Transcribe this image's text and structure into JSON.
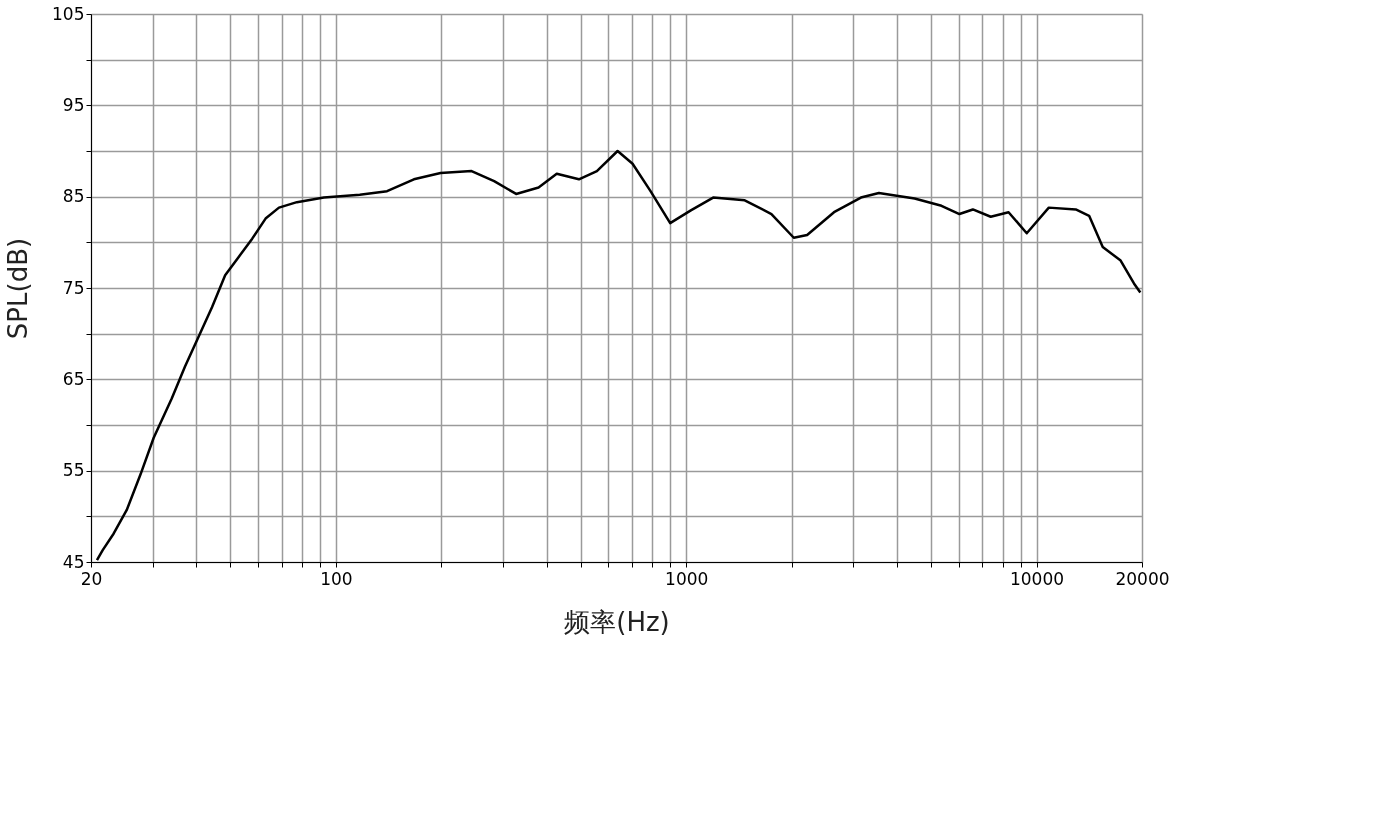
{
  "chart_data": {
    "type": "line",
    "xlabel": "频率(Hz)",
    "ylabel": "SPL(dB)",
    "log": "x",
    "grid": true,
    "marker": "none",
    "line_style": "solid",
    "xlim": [
      20,
      20000
    ],
    "ylim": [
      45,
      105
    ],
    "xticks": [
      20,
      {
        "value": 30,
        "label": null
      },
      {
        "value": 40,
        "label": null
      },
      {
        "value": 50,
        "label": null
      },
      {
        "value": 60,
        "label": null
      },
      {
        "value": 70,
        "label": null
      },
      {
        "value": 80,
        "label": null
      },
      {
        "value": 90,
        "label": null
      },
      100,
      {
        "value": 200,
        "label": null
      },
      {
        "value": 300,
        "label": null
      },
      {
        "value": 400,
        "label": null
      },
      {
        "value": 500,
        "label": null
      },
      {
        "value": 600,
        "label": null
      },
      {
        "value": 700,
        "label": null
      },
      {
        "value": 800,
        "label": null
      },
      {
        "value": 900,
        "label": null
      },
      1000,
      {
        "value": 2000,
        "label": null
      },
      {
        "value": 3000,
        "label": null
      },
      {
        "value": 4000,
        "label": null
      },
      {
        "value": 5000,
        "label": null
      },
      {
        "value": 6000,
        "label": null
      },
      {
        "value": 7000,
        "label": null
      },
      {
        "value": 8000,
        "label": null
      },
      {
        "value": 9000,
        "label": null
      },
      10000,
      20000
    ],
    "yticks": [
      45,
      {
        "value": 50,
        "label": null
      },
      55,
      {
        "value": 60,
        "label": null
      },
      65,
      {
        "value": 70,
        "label": null
      },
      75,
      {
        "value": 80,
        "label": null
      },
      85,
      {
        "value": 90,
        "label": null
      },
      95,
      {
        "value": 100,
        "label": null
      },
      105
    ],
    "series": [
      {
        "color": "#000000",
        "x": [
          20.8,
          21.6,
          23.2,
          25.3,
          27.7,
          30.2,
          34.0,
          37.1,
          40.5,
          44.3,
          48.3,
          52.8,
          57.7,
          63.0,
          68.8,
          77.4,
          92.4,
          117,
          140,
          167,
          199,
          244,
          283,
          327,
          379,
          427,
          494,
          556,
          637,
          703,
          791,
          900,
          1031,
          1194,
          1469,
          1751,
          2028,
          2214,
          2642,
          3153,
          3548,
          4487,
          5354,
          6024,
          6580,
          7400,
          8321,
          9376,
          10840,
          12940,
          14130,
          15450,
          17380,
          18970,
          19780
        ],
        "values": [
          45.2,
          46.3,
          48.1,
          50.7,
          54.6,
          58.6,
          62.9,
          66.4,
          69.6,
          72.9,
          76.4,
          78.4,
          80.4,
          82.6,
          83.8,
          84.4,
          84.9,
          85.2,
          85.6,
          86.9,
          87.6,
          87.8,
          86.7,
          85.3,
          86.0,
          87.5,
          86.9,
          87.8,
          90.0,
          88.6,
          85.6,
          82.1,
          83.5,
          84.9,
          84.6,
          83.1,
          80.5,
          80.8,
          83.3,
          84.9,
          85.4,
          84.8,
          84.0,
          83.1,
          83.6,
          82.8,
          83.3,
          81.0,
          83.8,
          83.6,
          82.9,
          79.5,
          78.0,
          75.5,
          74.5
        ]
      }
    ]
  }
}
